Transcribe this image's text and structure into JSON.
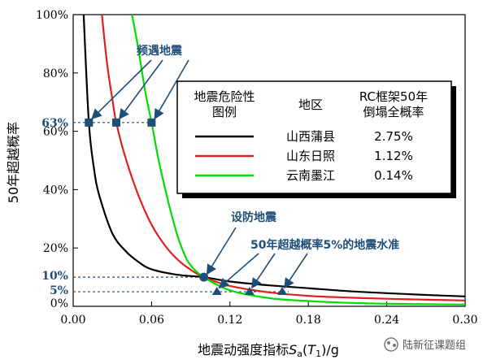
{
  "chart_data": {
    "type": "line",
    "xlabel": "地震动强度指标Sa(T1)/g",
    "ylabel": "50年超越概率",
    "xlim": [
      0,
      0.3
    ],
    "ylim": [
      0,
      100
    ],
    "x_ticks": [
      "0.00",
      "0.06",
      "0.12",
      "0.18",
      "0.24",
      "0.30"
    ],
    "y_ticks_black": [
      "0%",
      "20%",
      "40%",
      "60%",
      "80%",
      "100%"
    ],
    "y_ticks_blue": [
      "5%",
      "10%",
      "63%"
    ],
    "series": [
      {
        "name": "山西蒲县",
        "color": "#000000",
        "x": [
          0.008,
          0.012,
          0.016,
          0.02,
          0.03,
          0.04,
          0.05,
          0.06,
          0.08,
          0.1,
          0.12,
          0.15,
          0.18,
          0.21,
          0.24,
          0.27,
          0.3
        ],
        "y": [
          100,
          63,
          47,
          38,
          25,
          19,
          15.2,
          12.7,
          10.8,
          10,
          8.5,
          7.2,
          6.2,
          5.2,
          4.5,
          3.9,
          3.4
        ]
      },
      {
        "name": "山东日照",
        "color": "#e02020",
        "x": [
          0.022,
          0.026,
          0.03,
          0.033,
          0.04,
          0.05,
          0.06,
          0.07,
          0.08,
          0.09,
          0.1,
          0.12,
          0.15,
          0.18,
          0.21,
          0.24,
          0.3
        ],
        "y": [
          100,
          83,
          71,
          63,
          51,
          38,
          28,
          21,
          16,
          12.5,
          10,
          7,
          4.8,
          3.6,
          3,
          2.6,
          2
        ]
      },
      {
        "name": "云南墨江",
        "color": "#00dd00",
        "x": [
          0.045,
          0.05,
          0.055,
          0.06,
          0.065,
          0.07,
          0.075,
          0.08,
          0.085,
          0.09,
          0.1,
          0.12,
          0.15,
          0.18,
          0.21,
          0.24,
          0.3
        ],
        "y": [
          100,
          88,
          74,
          63,
          51,
          41,
          32,
          24,
          18,
          14,
          10,
          5.5,
          2.8,
          1.8,
          1.2,
          0.9,
          0.6
        ]
      }
    ],
    "legend": {
      "headers": [
        "地震危险性",
        "图例",
        "地区",
        "RC框架50年",
        "倒塌全概率"
      ],
      "rows": [
        {
          "region": "山西蒲县",
          "prob": "2.75%",
          "color": "#000000"
        },
        {
          "region": "山东日照",
          "prob": "1.12%",
          "color": "#e02020"
        },
        {
          "region": "云南墨江",
          "prob": "0.14%",
          "color": "#00dd00"
        }
      ]
    },
    "annotations": {
      "frequent": "频遇地震",
      "fortification": "设防地震",
      "level5": "50年超越概率5%的地震水准"
    },
    "markers_63": [
      0.012,
      0.033,
      0.06
    ],
    "point_10": [
      0.1,
      10
    ],
    "markers_5": [
      0.11,
      0.135,
      0.16
    ]
  },
  "watermark": "陆新征课题组"
}
